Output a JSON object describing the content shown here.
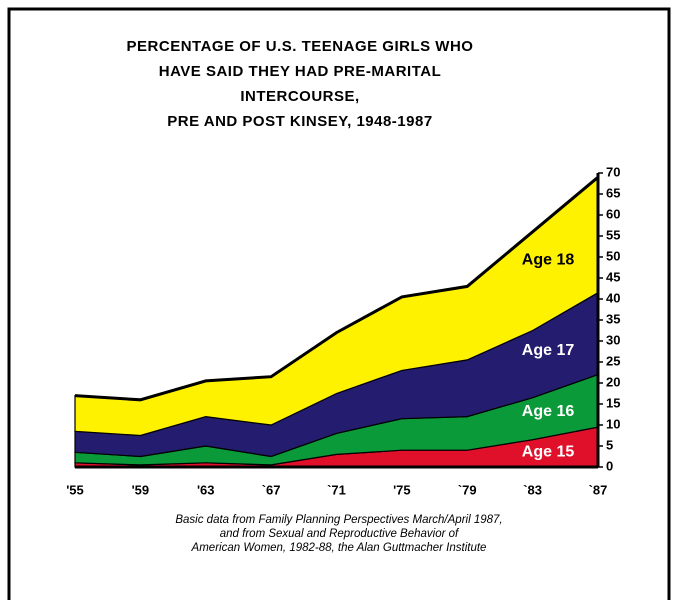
{
  "chart_data": {
    "type": "area",
    "title": [
      "PERCENTAGE OF U.S. TEENAGE GIRLS WHO",
      "HAVE SAID THEY HAD PRE-MARITAL",
      "INTERCOURSE,",
      "PRE AND POST KINSEY, 1948-1987"
    ],
    "note": [
      "Basic data from Family Planning Perspectives March/April 1987,",
      "and from Sexual and  Reproductive Behavior of",
      "American Women, 1982-88, the Alan Guttmacher Institute"
    ],
    "stacked": true,
    "categories": [
      "'55",
      "'59",
      "'63",
      "`67",
      "`71",
      "'75",
      "`79",
      "`83",
      "`87"
    ],
    "series": [
      {
        "name": "Age 15",
        "color": "#e0102a",
        "label_color": "#ffffff",
        "values": [
          1,
          0.5,
          1,
          0.5,
          3,
          4,
          4,
          6.5,
          9.5
        ]
      },
      {
        "name": "Age 16",
        "color": "#0a9a3a",
        "label_color": "#ffffff",
        "values": [
          2.5,
          2,
          4,
          2,
          5,
          7.5,
          8,
          10,
          12.5
        ]
      },
      {
        "name": "Age 17",
        "color": "#241c6e",
        "label_color": "#ffffff",
        "values": [
          5,
          5,
          7,
          7.5,
          9.5,
          11.5,
          13.5,
          16,
          19.5
        ]
      },
      {
        "name": "Age 18",
        "color": "#fff200",
        "label_color": "#000000",
        "values": [
          8.5,
          8.5,
          8.5,
          11.5,
          14.5,
          17.5,
          17.5,
          23.5,
          27.5
        ]
      }
    ],
    "ylim": [
      0,
      70
    ],
    "yticks": [
      0,
      5,
      10,
      15,
      20,
      25,
      30,
      35,
      40,
      45,
      50,
      55,
      60,
      65,
      70
    ],
    "y_axis_side": "right"
  }
}
